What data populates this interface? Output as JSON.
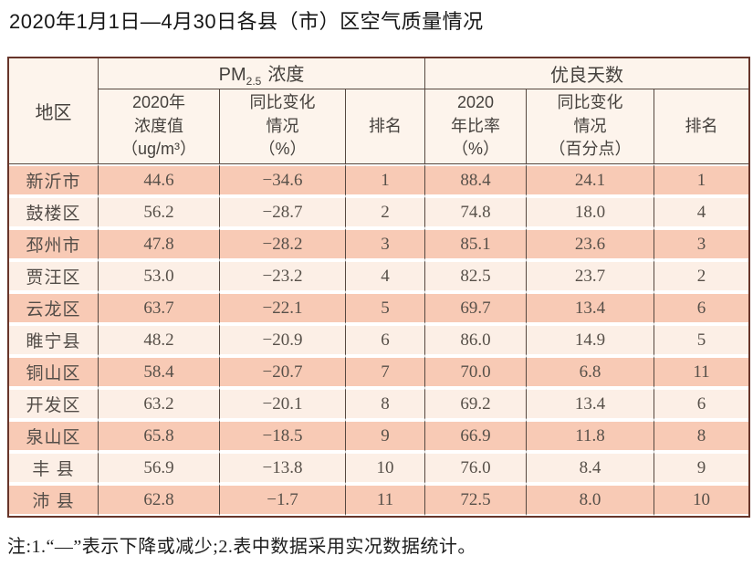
{
  "page_title": "2020年1月1日—4月30日各县（市）区空气质量情况",
  "table": {
    "corner_header": "地区",
    "group_headers": {
      "pm": {
        "prefix": "PM",
        "sub": "2.5",
        "suffix": "浓度"
      },
      "good_days": "优良天数"
    },
    "sub_headers": [
      "2020年\n浓度值\n（ug/m³）",
      "同比变化\n情况\n（%）",
      "排名",
      "2020\n年比率\n（%）",
      "同比变化\n情况\n（百分点）",
      "排名"
    ],
    "rows": [
      [
        "新沂市",
        "44.6",
        "−34.6",
        "1",
        "88.4",
        "24.1",
        "1"
      ],
      [
        "鼓楼区",
        "56.2",
        "−28.7",
        "2",
        "74.8",
        "18.0",
        "4"
      ],
      [
        "邳州市",
        "47.8",
        "−28.2",
        "3",
        "85.1",
        "23.6",
        "3"
      ],
      [
        "贾汪区",
        "53.0",
        "−23.2",
        "4",
        "82.5",
        "23.7",
        "2"
      ],
      [
        "云龙区",
        "63.7",
        "−22.1",
        "5",
        "69.7",
        "13.4",
        "6"
      ],
      [
        "睢宁县",
        "48.2",
        "−20.9",
        "6",
        "86.0",
        "14.9",
        "5"
      ],
      [
        "铜山区",
        "58.4",
        "−20.7",
        "7",
        "70.0",
        "6.8",
        "11"
      ],
      [
        "开发区",
        "63.2",
        "−20.1",
        "8",
        "69.2",
        "13.4",
        "6"
      ],
      [
        "泉山区",
        "65.8",
        "−18.5",
        "9",
        "66.9",
        "11.8",
        "8"
      ],
      [
        "丰 县",
        "56.9",
        "−13.8",
        "10",
        "76.0",
        "8.4",
        "9"
      ],
      [
        "沛 县",
        "62.8",
        "−1.7",
        "11",
        "72.5",
        "8.0",
        "10"
      ]
    ]
  },
  "footnote": "注:1.“—”表示下降或减少;2.表中数据采用实况数据统计。",
  "colors": {
    "row_salmon": "#f8cab5",
    "row_cream": "#fcefe6",
    "header_bg": "#fdf4ec",
    "outer_border": "#67352a",
    "inner_border": "#564840"
  }
}
